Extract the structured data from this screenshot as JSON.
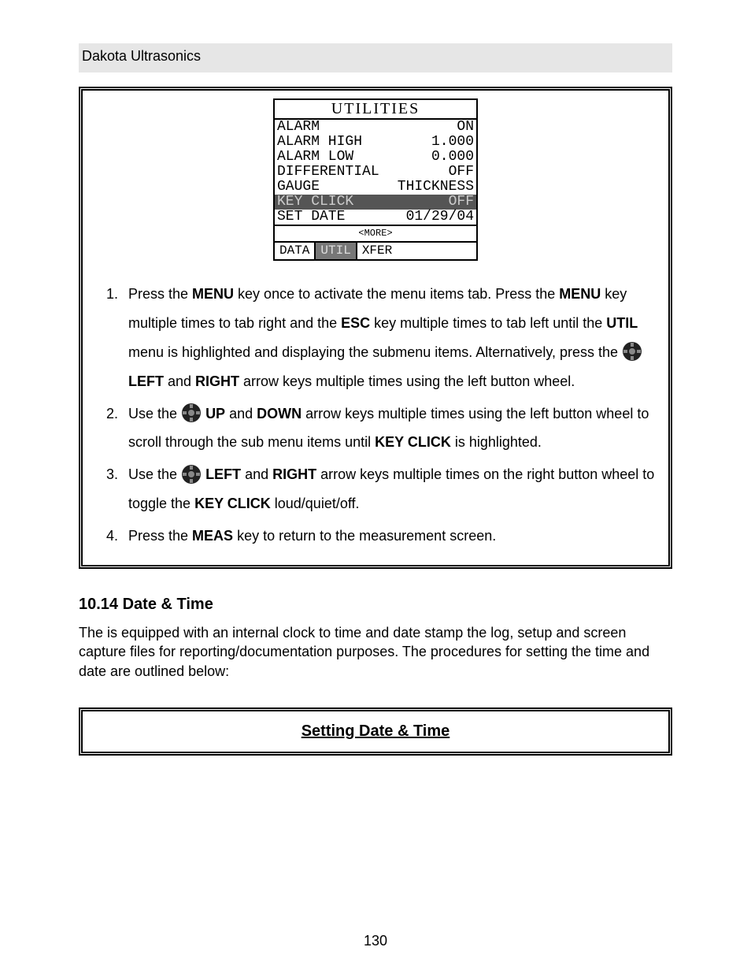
{
  "header": "Dakota Ultrasonics",
  "lcd": {
    "title": "UTILITIES",
    "rows": [
      {
        "l": "ALARM",
        "r": "ON",
        "sel": false
      },
      {
        "l": "ALARM HIGH",
        "r": "1.000",
        "sel": false
      },
      {
        "l": "ALARM LOW",
        "r": "0.000",
        "sel": false
      },
      {
        "l": "DIFFERENTIAL",
        "r": "OFF",
        "sel": false
      },
      {
        "l": "GAUGE",
        "r": "THICKNESS",
        "sel": false
      },
      {
        "l": "KEY CLICK",
        "r": "OFF",
        "sel": true
      },
      {
        "l": "SET DATE",
        "r": "01/29/04",
        "sel": false
      }
    ],
    "more": "<MORE>",
    "tabs": {
      "left": "DATA",
      "active": "UTIL",
      "right": "XFER"
    }
  },
  "steps": {
    "s1a": "Press the ",
    "s1b": " key once to activate the menu items tab.  Press the ",
    "s1c": " key multiple times to tab right and the ",
    "s1d": " key multiple times to tab left until the ",
    "s1e": " menu is highlighted and displaying the submenu items.  Alternatively, press the ",
    "s1f": " and ",
    "s1g": " arrow keys multiple times using the left button wheel.",
    "s2a": "Use the ",
    "s2b": " and ",
    "s2c": " arrow keys multiple times using the left button wheel to scroll through the sub menu items until ",
    "s2d": " is highlighted.",
    "s3a": "Use the ",
    "s3b": " and ",
    "s3c": " arrow keys multiple times on the right button wheel to toggle the ",
    "s3d": " loud/quiet/off.",
    "s4a": "Press the ",
    "s4b": " key to return to the measurement screen."
  },
  "bold": {
    "MENU": "MENU",
    "ESC": "ESC",
    "UTIL": "UTIL",
    "LEFT": "LEFT",
    "RIGHT": "RIGHT",
    "UP": "UP",
    "DOWN": "DOWN",
    "KEY_CLICK": "KEY CLICK",
    "MEAS": "MEAS"
  },
  "section_title": "10.14 Date & Time",
  "section_body": "The           is equipped with an internal clock to time and date stamp the log, setup and screen capture files for reporting/documentation purposes.  The procedures for setting the time and date are outlined below:",
  "box2_title": "Setting Date & Time",
  "page_number": "130"
}
